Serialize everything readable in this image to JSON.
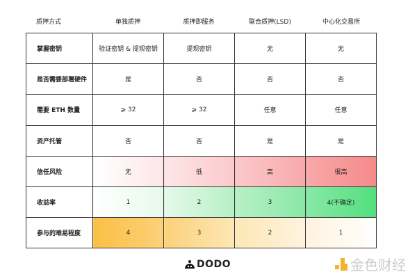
{
  "header": [
    "质押方式",
    "单独质押",
    "质押即服务",
    "联合质押(LSD)",
    "中心化交易所"
  ],
  "rows": [
    {
      "label": "掌握密钥",
      "cells": [
        "验证密钥 & 提现密钥",
        "提现密钥",
        "无",
        "无"
      ]
    },
    {
      "label": "是否需要部署硬件",
      "cells": [
        "是",
        "否",
        "否",
        "否"
      ]
    },
    {
      "label": "需要 ETH 数量",
      "cells": [
        "⩾ 32",
        "⩾ 32",
        "任意",
        "任意"
      ]
    },
    {
      "label": "资产托管",
      "cells": [
        "否",
        "否",
        "是",
        "是"
      ]
    },
    {
      "label": "信任风险",
      "cells": [
        "无",
        "低",
        "高",
        "很高"
      ]
    },
    {
      "label": "收益率",
      "cells": [
        "1",
        "2",
        "3",
        "4(不确定)"
      ]
    },
    {
      "label": "参与的难易程度",
      "cells": [
        "4",
        "3",
        "2",
        "1"
      ]
    }
  ],
  "colors": {
    "risk": "#f58a8a",
    "yield": "#52e07e",
    "difficulty": "#fbbf45"
  },
  "logo": "DODO",
  "watermark": "金色财经"
}
